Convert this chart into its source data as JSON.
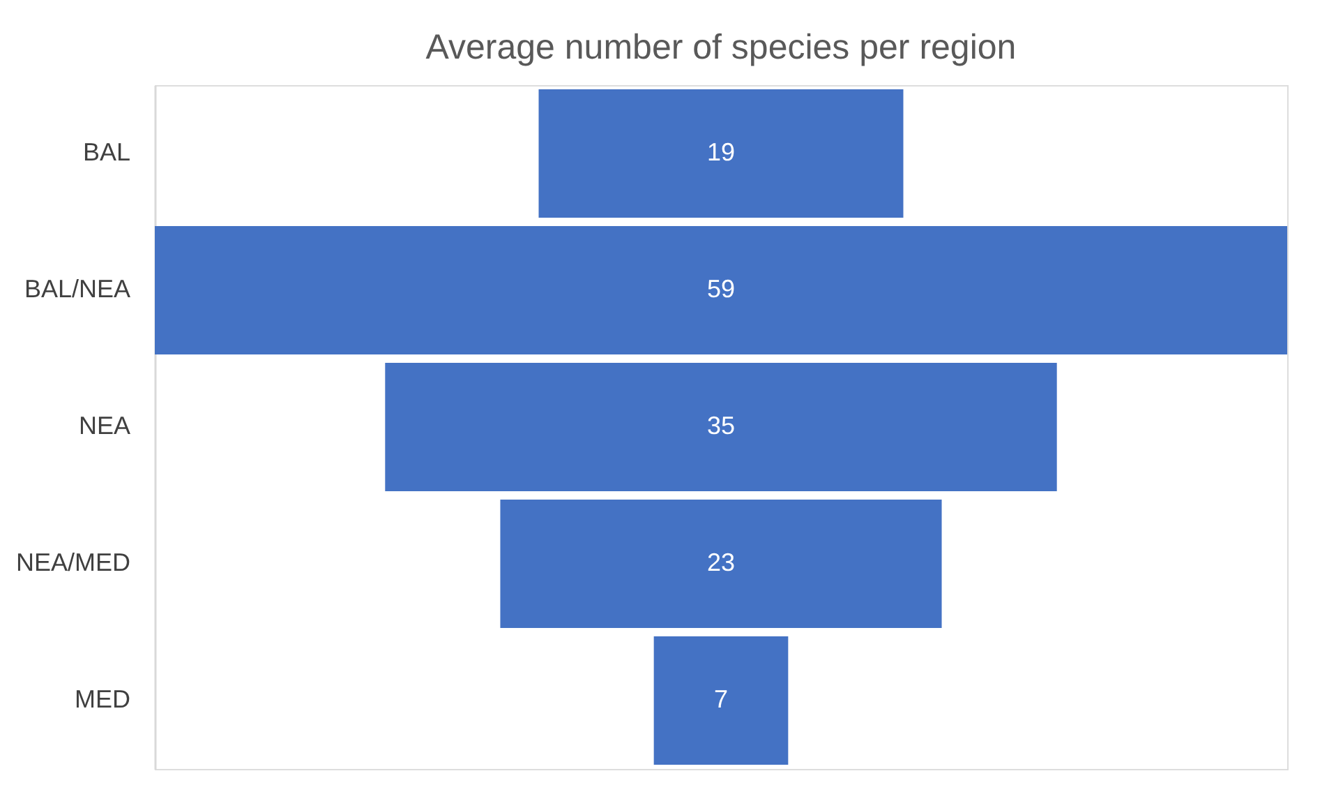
{
  "chart_data": {
    "type": "other",
    "title": "Average number of species per region",
    "categories": [
      "BAL",
      "BAL/NEA",
      "NEA",
      "NEA/MED",
      "MED"
    ],
    "values": [
      19,
      59,
      35,
      23,
      7
    ],
    "color": "#4472c4",
    "data_labels": true
  }
}
